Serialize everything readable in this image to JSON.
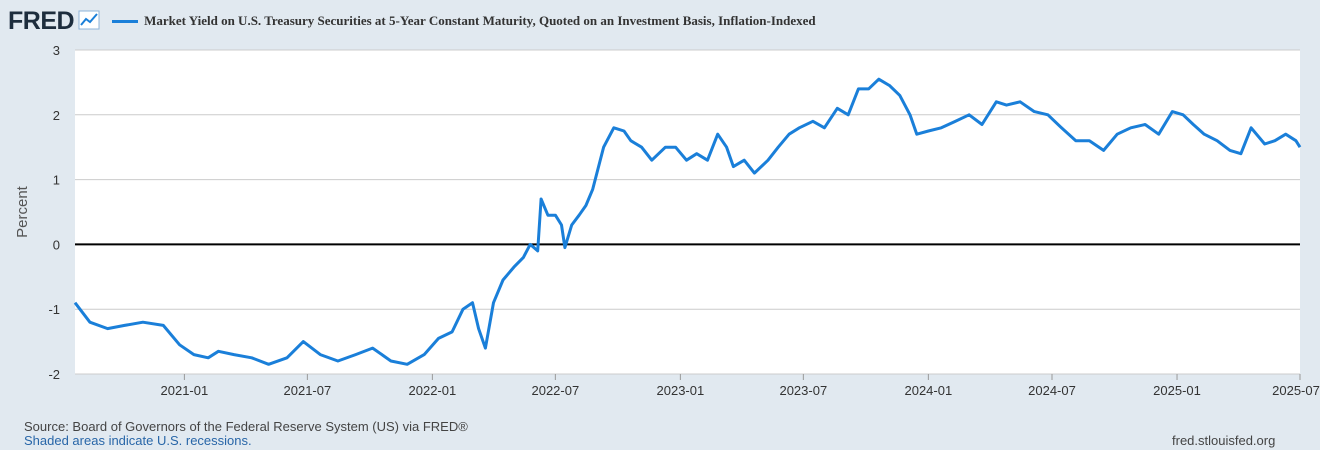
{
  "header": {
    "logo_text": "FRED",
    "logo_icon": "line-chart-icon",
    "legend_label": "Market Yield on U.S. Treasury Securities at 5-Year Constant Maturity, Quoted on an Investment Basis, Inflation-Indexed"
  },
  "footer": {
    "source": "Source: Board of Governors of the Federal Reserve System (US) via FRED®",
    "recession_note": "Shaded areas indicate U.S. recessions.",
    "site": "fred.stlouisfed.org"
  },
  "colors": {
    "series": "#1a7fd9",
    "plot_bg": "#ffffff",
    "page_bg": "#e1e9f0",
    "grid": "#cccccc",
    "zero_line": "#000000"
  },
  "chart_data": {
    "type": "line",
    "title": "",
    "xlabel": "",
    "ylabel": "Percent",
    "ylim": [
      -2,
      3
    ],
    "xlim": [
      "2020-07-24",
      "2025-07-01"
    ],
    "yticks": [
      -2,
      -1,
      0,
      1,
      2,
      3
    ],
    "xticks": [
      "2021-01",
      "2021-07",
      "2022-01",
      "2022-07",
      "2023-01",
      "2023-07",
      "2024-01",
      "2024-07",
      "2025-01",
      "2025-07"
    ],
    "grid": true,
    "series": [
      {
        "name": "",
        "x": [
          "2020-07-24",
          "2020-08-15",
          "2020-09-10",
          "2020-10-05",
          "2020-11-01",
          "2020-12-01",
          "2020-12-25",
          "2021-01-15",
          "2021-02-05",
          "2021-02-20",
          "2021-03-15",
          "2021-04-10",
          "2021-05-05",
          "2021-06-01",
          "2021-06-25",
          "2021-07-20",
          "2021-08-15",
          "2021-09-10",
          "2021-10-05",
          "2021-11-01",
          "2021-11-25",
          "2021-12-20",
          "2022-01-10",
          "2022-01-30",
          "2022-02-15",
          "2022-03-01",
          "2022-03-10",
          "2022-03-20",
          "2022-04-01",
          "2022-04-15",
          "2022-05-01",
          "2022-05-15",
          "2022-05-25",
          "2022-06-05",
          "2022-06-10",
          "2022-06-20",
          "2022-07-01",
          "2022-07-10",
          "2022-07-15",
          "2022-07-25",
          "2022-08-05",
          "2022-08-15",
          "2022-08-25",
          "2022-09-10",
          "2022-09-25",
          "2022-10-10",
          "2022-10-20",
          "2022-11-05",
          "2022-11-20",
          "2022-12-10",
          "2022-12-25",
          "2023-01-10",
          "2023-01-25",
          "2023-02-10",
          "2023-02-25",
          "2023-03-10",
          "2023-03-20",
          "2023-04-05",
          "2023-04-20",
          "2023-05-10",
          "2023-05-25",
          "2023-06-10",
          "2023-06-25",
          "2023-07-15",
          "2023-08-01",
          "2023-08-20",
          "2023-09-05",
          "2023-09-20",
          "2023-10-05",
          "2023-10-20",
          "2023-11-05",
          "2023-11-20",
          "2023-12-05",
          "2023-12-15",
          "2024-01-01",
          "2024-01-20",
          "2024-02-10",
          "2024-03-01",
          "2024-03-20",
          "2024-04-10",
          "2024-04-25",
          "2024-05-15",
          "2024-06-05",
          "2024-06-25",
          "2024-07-15",
          "2024-08-05",
          "2024-08-25",
          "2024-09-15",
          "2024-10-05",
          "2024-10-25",
          "2024-11-15",
          "2024-12-05",
          "2024-12-25",
          "2025-01-10",
          "2025-01-25",
          "2025-02-10",
          "2025-03-01",
          "2025-03-20",
          "2025-04-05",
          "2025-04-20",
          "2025-05-10",
          "2025-05-25",
          "2025-06-10",
          "2025-06-25",
          "2025-07-01"
        ],
        "values": [
          -0.9,
          -1.2,
          -1.3,
          -1.25,
          -1.2,
          -1.25,
          -1.55,
          -1.7,
          -1.75,
          -1.65,
          -1.7,
          -1.75,
          -1.85,
          -1.75,
          -1.5,
          -1.7,
          -1.8,
          -1.7,
          -1.6,
          -1.8,
          -1.85,
          -1.7,
          -1.45,
          -1.35,
          -1.0,
          -0.9,
          -1.3,
          -1.6,
          -0.9,
          -0.55,
          -0.35,
          -0.2,
          0.0,
          -0.1,
          0.7,
          0.45,
          0.45,
          0.3,
          -0.05,
          0.3,
          0.45,
          0.6,
          0.85,
          1.5,
          1.8,
          1.75,
          1.6,
          1.5,
          1.3,
          1.5,
          1.5,
          1.3,
          1.4,
          1.3,
          1.7,
          1.5,
          1.2,
          1.3,
          1.1,
          1.3,
          1.5,
          1.7,
          1.8,
          1.9,
          1.8,
          2.1,
          2.0,
          2.4,
          2.4,
          2.55,
          2.45,
          2.3,
          2.0,
          1.7,
          1.75,
          1.8,
          1.9,
          2.0,
          1.85,
          2.2,
          2.15,
          2.2,
          2.05,
          2.0,
          1.8,
          1.6,
          1.6,
          1.45,
          1.7,
          1.8,
          1.85,
          1.7,
          2.05,
          2.0,
          1.85,
          1.7,
          1.6,
          1.45,
          1.4,
          1.8,
          1.55,
          1.6,
          1.7,
          1.6,
          1.5
        ]
      }
    ]
  }
}
